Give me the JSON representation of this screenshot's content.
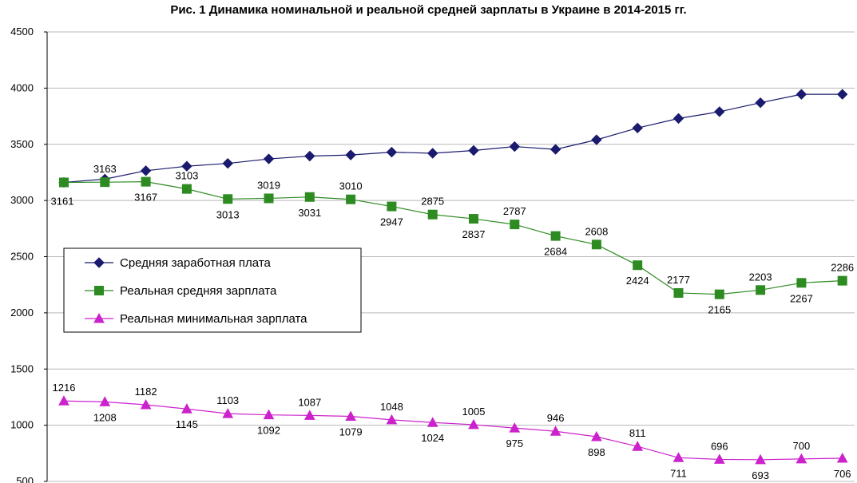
{
  "chart_data": {
    "type": "line",
    "title": "Рис. 1 Динамика номинальной и реальной средней зарплаты в Украине в 2014-2015 гг.",
    "ylim": [
      500,
      4500
    ],
    "yticks": [
      500,
      1000,
      1500,
      2000,
      2500,
      3000,
      3500,
      4000,
      4500
    ],
    "ytick_labels": [
      "500",
      "1000",
      "1500",
      "2000",
      "2500",
      "3000",
      "3500",
      "4000",
      "4500"
    ],
    "grid": true,
    "legend_position": "middle-left",
    "series": [
      {
        "name": "Средняя заработная плата",
        "color": "#1a1a6e",
        "marker": "diamond",
        "values": [
          3161,
          3190,
          3265,
          3305,
          3330,
          3370,
          3395,
          3405,
          3430,
          3420,
          3445,
          3480,
          3455,
          3540,
          3645,
          3730,
          3790,
          3870,
          3945,
          3945
        ],
        "labels": []
      },
      {
        "name": "Реальная средняя зарплата",
        "color": "#2e8b22",
        "marker": "square",
        "values": [
          3161,
          3163,
          3167,
          3103,
          3013,
          3019,
          3031,
          3010,
          2947,
          2875,
          2837,
          2787,
          2684,
          2608,
          2424,
          2177,
          2165,
          2203,
          2267,
          2286
        ],
        "labels": [
          "3161",
          "3163",
          "3167",
          "3103",
          "3013",
          "3019",
          "3031",
          "3010",
          "2947",
          "2875",
          "2837",
          "2787",
          "2684",
          "2608",
          "2424",
          "2177",
          "2165",
          "2203",
          "2267",
          "2286"
        ]
      },
      {
        "name": "Реальная минимальная зарплата",
        "color": "#cc22cc",
        "marker": "triangle",
        "values": [
          1216,
          1208,
          1182,
          1145,
          1103,
          1092,
          1087,
          1079,
          1048,
          1024,
          1005,
          975,
          946,
          898,
          811,
          711,
          696,
          693,
          700,
          706
        ],
        "labels": [
          "1216",
          "1208",
          "1182",
          "1145",
          "1103",
          "1092",
          "1087",
          "1079",
          "1048",
          "1024",
          "1005",
          "975",
          "946",
          "898",
          "811",
          "711",
          "696",
          "693",
          "700",
          "706"
        ]
      }
    ]
  }
}
